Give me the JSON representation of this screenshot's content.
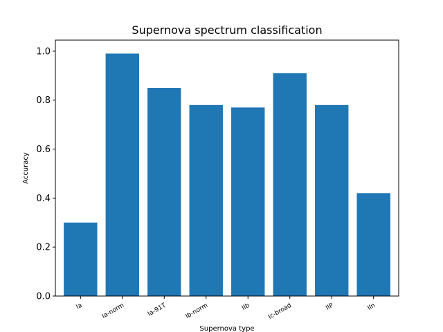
{
  "chart_data": {
    "type": "bar",
    "title": "Supernova spectrum classification",
    "xlabel": "Supernova type",
    "ylabel": "Accuracy",
    "categories": [
      "Ia",
      "Ia-norm",
      "Ia-91T",
      "Ib-norm",
      "IIb",
      "Ic-broad",
      "IIP",
      "IIn"
    ],
    "values": [
      0.3,
      0.99,
      0.85,
      0.78,
      0.77,
      0.91,
      0.78,
      0.42
    ],
    "ylim": [
      0,
      1.045
    ],
    "yticks": [
      0.0,
      0.2,
      0.4,
      0.6,
      0.8,
      1.0
    ],
    "ytick_labels": [
      "0.0",
      "0.2",
      "0.4",
      "0.6",
      "0.8",
      "1.0"
    ],
    "bar_color": "#1f77b4",
    "grid": false,
    "legend": "none"
  }
}
